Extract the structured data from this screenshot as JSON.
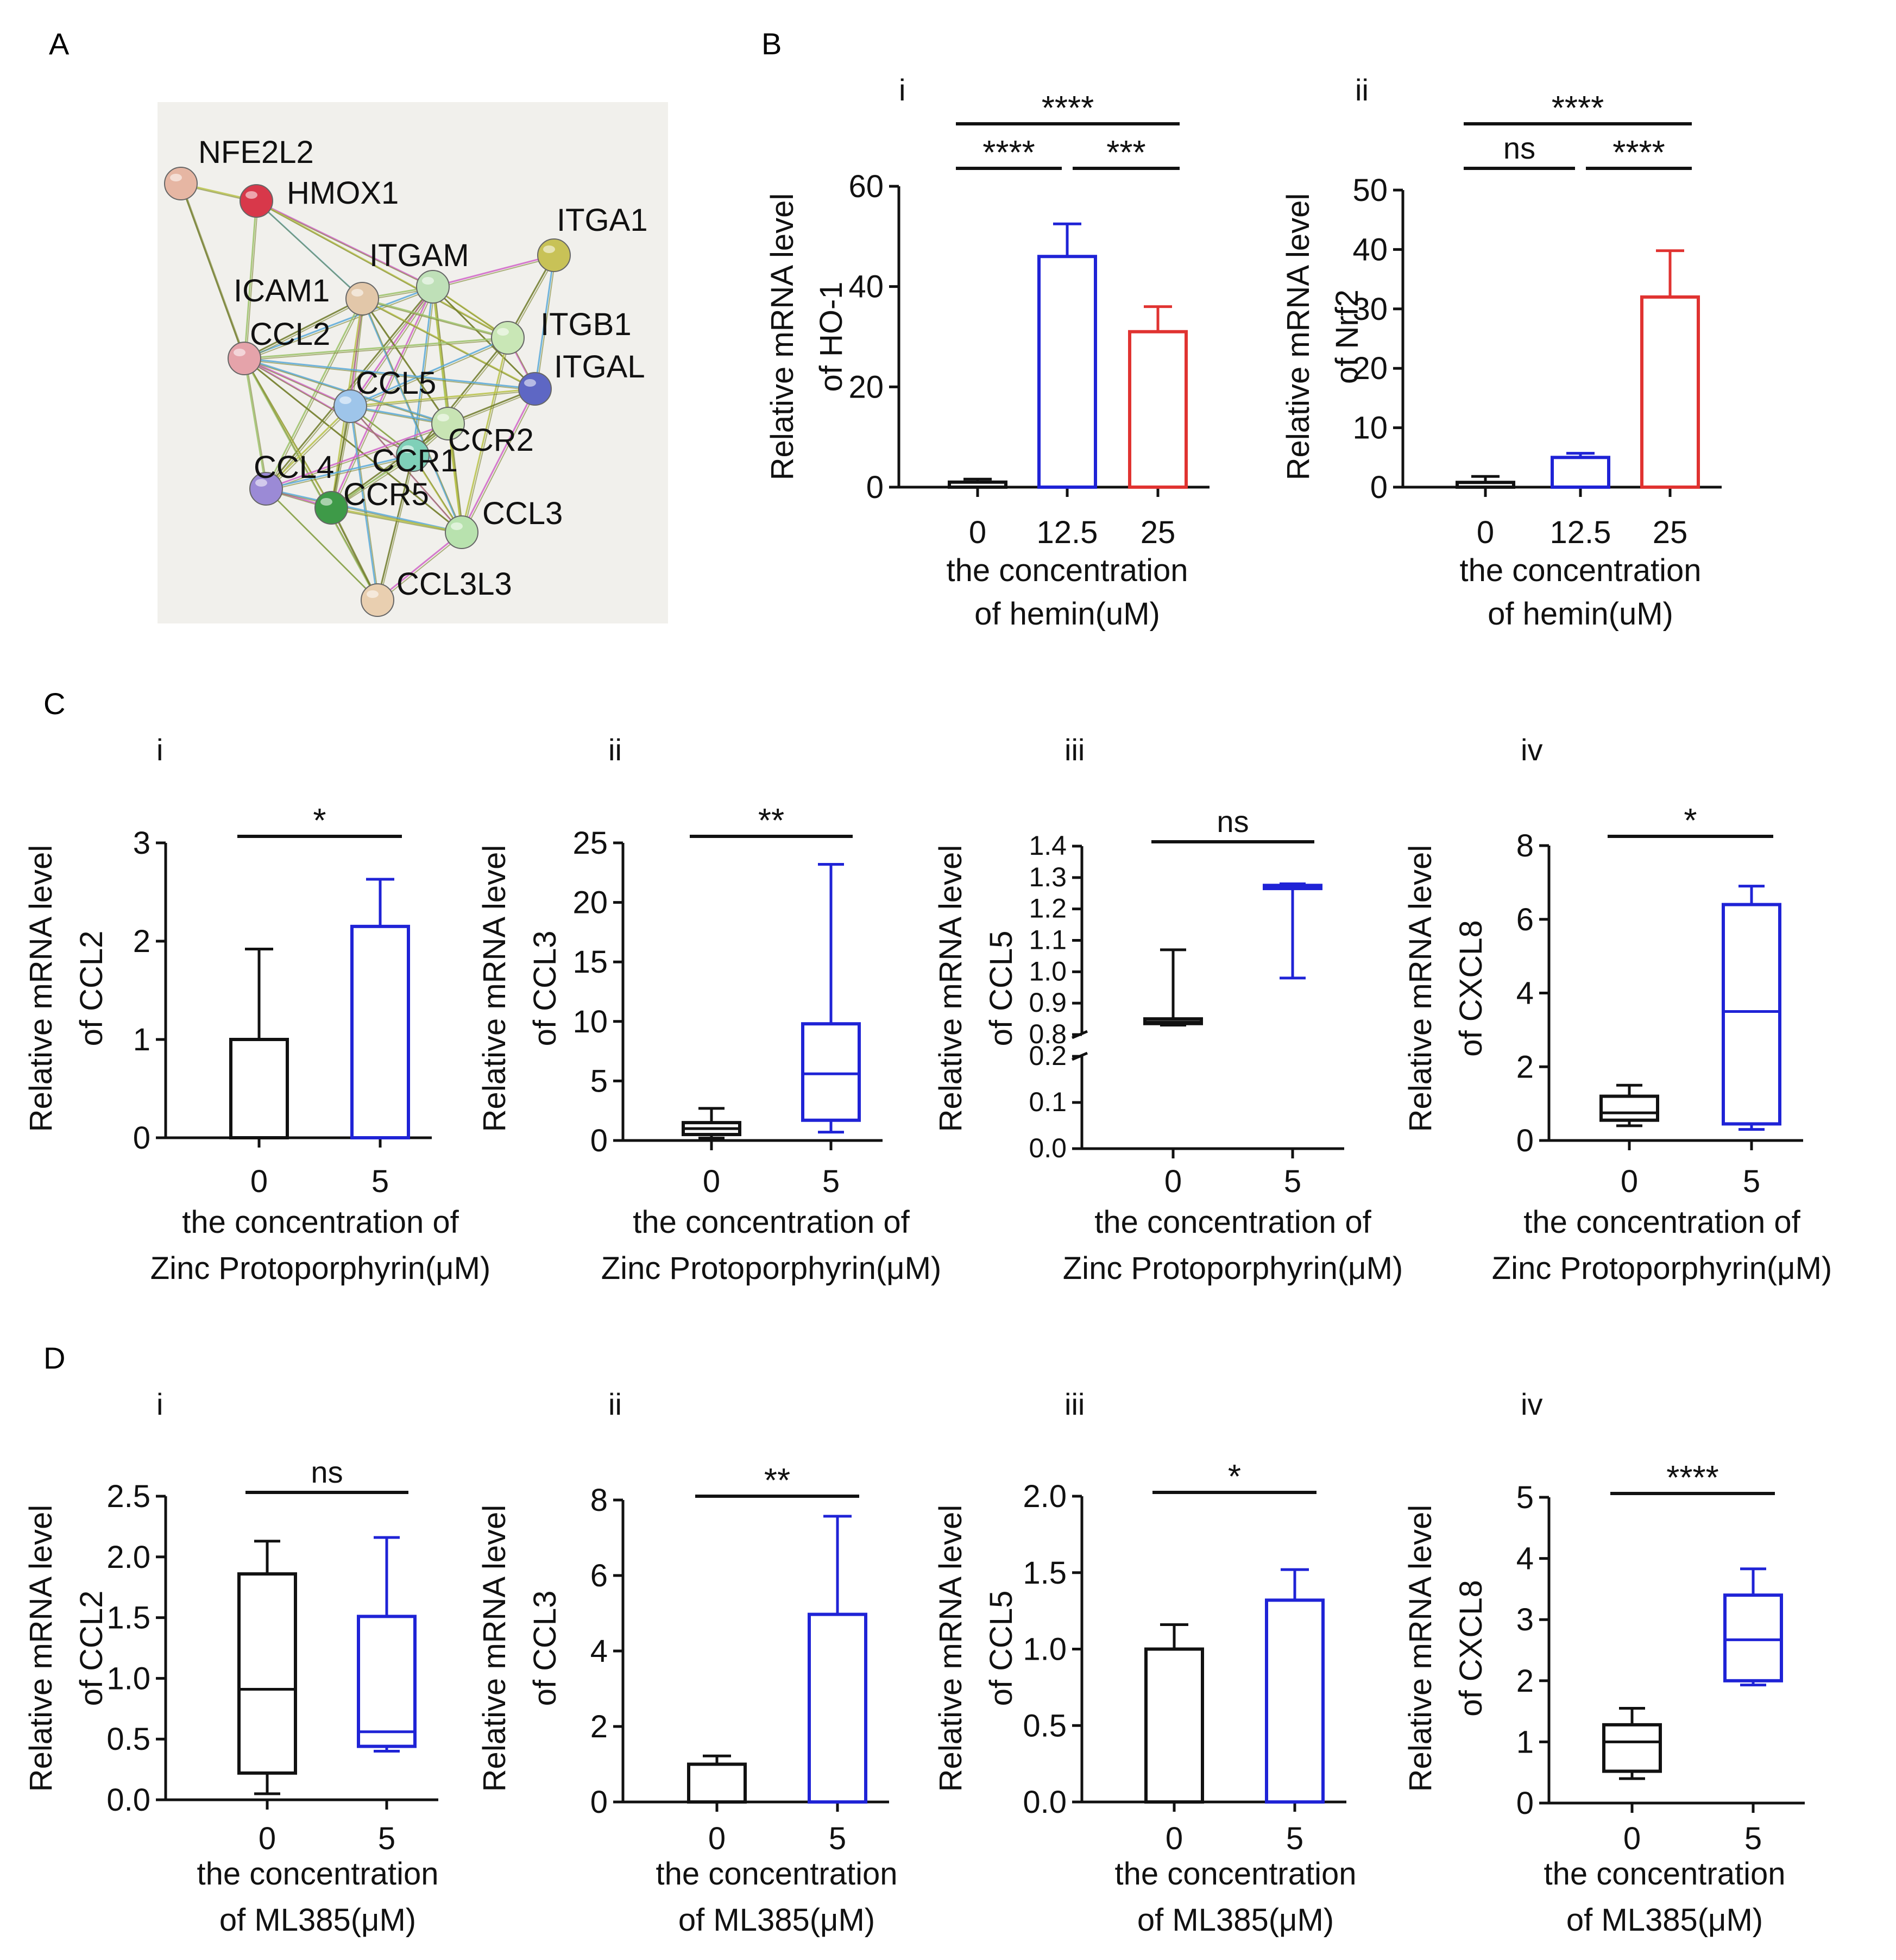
{
  "colors": {
    "black": "#111111",
    "blue": "#1f23d6",
    "red": "#e03331",
    "network_bg": "#f1f0ec"
  },
  "panel_letters": {
    "A": "A",
    "B": "B",
    "C": "C",
    "D": "D"
  },
  "network": {
    "nodes": [
      {
        "id": "NFE2L2",
        "label": "NFE2L2",
        "color": "#e6b6a3"
      },
      {
        "id": "HMOX1",
        "label": "HMOX1",
        "color": "#d8384a"
      },
      {
        "id": "ITGA1",
        "label": "ITGA1",
        "color": "#c8c257"
      },
      {
        "id": "ITGAM",
        "label": "ITGAM",
        "color": "#bfe0b8"
      },
      {
        "id": "ICAM1",
        "label": "ICAM1",
        "color": "#e2c7a9"
      },
      {
        "id": "ITGB1",
        "label": "ITGB1",
        "color": "#c9e7b6"
      },
      {
        "id": "CCL2",
        "label": "CCL2",
        "color": "#e5a3aa"
      },
      {
        "id": "ITGAL",
        "label": "ITGAL",
        "color": "#5e67c4"
      },
      {
        "id": "CCL5",
        "label": "CCL5",
        "color": "#9ec5ea"
      },
      {
        "id": "CCR2",
        "label": "CCR2",
        "color": "#c8e4b4"
      },
      {
        "id": "CCR1",
        "label": "CCR1",
        "color": "#7fd0b8"
      },
      {
        "id": "CCL4",
        "label": "CCL4",
        "color": "#9b8ad6"
      },
      {
        "id": "CCR5",
        "label": "CCR5",
        "color": "#3e9a48"
      },
      {
        "id": "CCL3",
        "label": "CCL3",
        "color": "#b8e2ae"
      },
      {
        "id": "CCL3L3",
        "label": "CCL3L3",
        "color": "#e9cfb0"
      }
    ]
  },
  "chart_data": [
    {
      "id": "B-i",
      "panel": "B",
      "sub": "i",
      "type": "bar",
      "categories": [
        "0",
        "12.5",
        "25"
      ],
      "series": [
        {
          "values": [
            1.0,
            46.0,
            31.0
          ],
          "errors": [
            0.6,
            6.5,
            5.0
          ],
          "colors": [
            "black",
            "blue",
            "red"
          ]
        }
      ],
      "ylim": [
        0,
        60
      ],
      "yticks": [
        "0",
        "20",
        "40",
        "60"
      ],
      "ylabel": [
        "Relative mRNA level",
        "of HO-1"
      ],
      "xlabel": [
        "the concentration",
        "of hemin(uM)"
      ],
      "significance": [
        {
          "from": 0,
          "to": 1,
          "label": "****",
          "level": 1
        },
        {
          "from": 1,
          "to": 2,
          "label": "***",
          "level": 1
        },
        {
          "from": 0,
          "to": 2,
          "label": "****",
          "level": 2
        }
      ]
    },
    {
      "id": "B-ii",
      "panel": "B",
      "sub": "ii",
      "type": "bar",
      "categories": [
        "0",
        "12.5",
        "25"
      ],
      "series": [
        {
          "values": [
            0.8,
            5.0,
            32.0
          ],
          "errors": [
            1.0,
            0.7,
            7.8
          ],
          "colors": [
            "black",
            "blue",
            "red"
          ]
        }
      ],
      "ylim": [
        0,
        50
      ],
      "yticks": [
        "0",
        "10",
        "20",
        "30",
        "40",
        "50"
      ],
      "ylabel": [
        "Relative mRNA level",
        "of Nrf2"
      ],
      "xlabel": [
        "the concentration",
        "of hemin(uM)"
      ],
      "significance": [
        {
          "from": 0,
          "to": 1,
          "label": "ns",
          "level": 1
        },
        {
          "from": 1,
          "to": 2,
          "label": "****",
          "level": 1
        },
        {
          "from": 0,
          "to": 2,
          "label": "****",
          "level": 2
        }
      ]
    },
    {
      "id": "C-i",
      "panel": "C",
      "sub": "i",
      "type": "bar",
      "categories": [
        "0",
        "5"
      ],
      "series": [
        {
          "values": [
            1.0,
            2.15
          ],
          "errors": [
            0.92,
            0.48
          ],
          "colors": [
            "black",
            "blue"
          ]
        }
      ],
      "ylim": [
        0,
        3
      ],
      "yticks": [
        "0",
        "1",
        "2",
        "3"
      ],
      "ylabel": [
        "Relative mRNA level",
        "of CCL2"
      ],
      "xlabel": [
        "the concentration of",
        "Zinc Protoporphyrin(μM)"
      ],
      "significance": [
        {
          "from": 0,
          "to": 1,
          "label": "*",
          "level": 1
        }
      ]
    },
    {
      "id": "C-ii",
      "panel": "C",
      "sub": "ii",
      "type": "box",
      "categories": [
        "0",
        "5"
      ],
      "boxes": [
        {
          "min": 0.2,
          "q1": 0.5,
          "median": 1.0,
          "q3": 1.5,
          "max": 2.7,
          "color": "black"
        },
        {
          "min": 0.7,
          "q1": 1.7,
          "median": 5.6,
          "q3": 9.8,
          "max": 23.2,
          "color": "blue"
        }
      ],
      "ylim": [
        0,
        25
      ],
      "yticks": [
        "0",
        "5",
        "10",
        "15",
        "20",
        "25"
      ],
      "ylabel": [
        "Relative mRNA level",
        "of CCL3"
      ],
      "xlabel": [
        "the concentration of",
        "Zinc Protoporphyrin(μM)"
      ],
      "significance": [
        {
          "from": 0,
          "to": 1,
          "label": "**",
          "level": 1
        }
      ]
    },
    {
      "id": "C-iii",
      "panel": "C",
      "sub": "iii",
      "type": "box",
      "axis_break": {
        "lower": [
          0,
          0.2
        ],
        "upper": [
          0.8,
          1.4
        ]
      },
      "categories": [
        "0",
        "5"
      ],
      "boxes": [
        {
          "min": 0.83,
          "q1": 0.835,
          "median": 0.84,
          "q3": 0.85,
          "max": 1.07,
          "color": "black"
        },
        {
          "min": 0.98,
          "q1": 1.265,
          "median": 1.27,
          "q3": 1.275,
          "max": 1.28,
          "color": "blue"
        }
      ],
      "yticks_lower": [
        "0.0",
        "0.1",
        "0.2"
      ],
      "yticks_upper": [
        "0.8",
        "0.9",
        "1.0",
        "1.1",
        "1.2",
        "1.3",
        "1.4"
      ],
      "ylabel": [
        "Relative mRNA level",
        "of CCL5"
      ],
      "xlabel": [
        "the concentration of",
        "Zinc Protoporphyrin(μM)"
      ],
      "significance": [
        {
          "from": 0,
          "to": 1,
          "label": "ns",
          "level": 1
        }
      ]
    },
    {
      "id": "C-iv",
      "panel": "C",
      "sub": "iv",
      "type": "box",
      "categories": [
        "0",
        "5"
      ],
      "boxes": [
        {
          "min": 0.4,
          "q1": 0.55,
          "median": 0.75,
          "q3": 1.2,
          "max": 1.5,
          "color": "black"
        },
        {
          "min": 0.3,
          "q1": 0.45,
          "median": 3.5,
          "q3": 6.4,
          "max": 6.9,
          "color": "blue"
        }
      ],
      "ylim": [
        0,
        8
      ],
      "yticks": [
        "0",
        "2",
        "4",
        "6",
        "8"
      ],
      "ylabel": [
        "Relative mRNA level",
        "of CXCL8"
      ],
      "xlabel": [
        "the concentration of",
        "Zinc Protoporphyrin(μM)"
      ],
      "significance": [
        {
          "from": 0,
          "to": 1,
          "label": "*",
          "level": 1
        }
      ]
    },
    {
      "id": "D-i",
      "panel": "D",
      "sub": "i",
      "type": "box",
      "categories": [
        "0",
        "5"
      ],
      "boxes": [
        {
          "min": 0.05,
          "q1": 0.22,
          "median": 0.91,
          "q3": 1.86,
          "max": 2.13,
          "color": "black"
        },
        {
          "min": 0.4,
          "q1": 0.44,
          "median": 0.56,
          "q3": 1.51,
          "max": 2.16,
          "color": "blue"
        }
      ],
      "ylim": [
        0,
        2.5
      ],
      "yticks": [
        "0.0",
        "0.5",
        "1.0",
        "1.5",
        "2.0",
        "2.5"
      ],
      "ylabel": [
        "Relative mRNA level",
        "of CCL2"
      ],
      "xlabel": [
        "the concentration",
        "of ML385(μM)"
      ],
      "significance": [
        {
          "from": 0,
          "to": 1,
          "label": "ns",
          "level": 1
        }
      ]
    },
    {
      "id": "D-ii",
      "panel": "D",
      "sub": "ii",
      "type": "bar",
      "categories": [
        "0",
        "5"
      ],
      "series": [
        {
          "values": [
            1.0,
            4.97
          ],
          "errors": [
            0.22,
            2.6
          ],
          "colors": [
            "black",
            "blue"
          ]
        }
      ],
      "ylim": [
        0,
        8
      ],
      "yticks": [
        "0",
        "2",
        "4",
        "6",
        "8"
      ],
      "ylabel": [
        "Relative mRNA level",
        "of CCL3"
      ],
      "xlabel": [
        "the concentration",
        "of ML385(μM)"
      ],
      "significance": [
        {
          "from": 0,
          "to": 1,
          "label": "**",
          "level": 1
        }
      ]
    },
    {
      "id": "D-iii",
      "panel": "D",
      "sub": "iii",
      "type": "bar",
      "categories": [
        "0",
        "5"
      ],
      "series": [
        {
          "values": [
            1.0,
            1.32
          ],
          "errors": [
            0.16,
            0.2
          ],
          "colors": [
            "black",
            "blue"
          ]
        }
      ],
      "ylim": [
        0,
        2
      ],
      "yticks": [
        "0.0",
        "0.5",
        "1.0",
        "1.5",
        "2.0"
      ],
      "ylabel": [
        "Relative mRNA level",
        "of CCL5"
      ],
      "xlabel": [
        "the concentration",
        "of ML385(μM)"
      ],
      "significance": [
        {
          "from": 0,
          "to": 1,
          "label": "*",
          "level": 1
        }
      ]
    },
    {
      "id": "D-iv",
      "panel": "D",
      "sub": "iv",
      "type": "box",
      "categories": [
        "0",
        "5"
      ],
      "boxes": [
        {
          "min": 0.4,
          "q1": 0.52,
          "median": 1.0,
          "q3": 1.28,
          "max": 1.55,
          "color": "black"
        },
        {
          "min": 1.93,
          "q1": 2.0,
          "median": 2.67,
          "q3": 3.4,
          "max": 3.83,
          "color": "blue"
        }
      ],
      "ylim": [
        0,
        5
      ],
      "yticks": [
        "0",
        "1",
        "2",
        "3",
        "4",
        "5"
      ],
      "ylabel": [
        "Relative mRNA level",
        "of CXCL8"
      ],
      "xlabel": [
        "the concentration",
        "of ML385(μM)"
      ],
      "significance": [
        {
          "from": 0,
          "to": 1,
          "label": "****",
          "level": 1
        }
      ]
    }
  ]
}
